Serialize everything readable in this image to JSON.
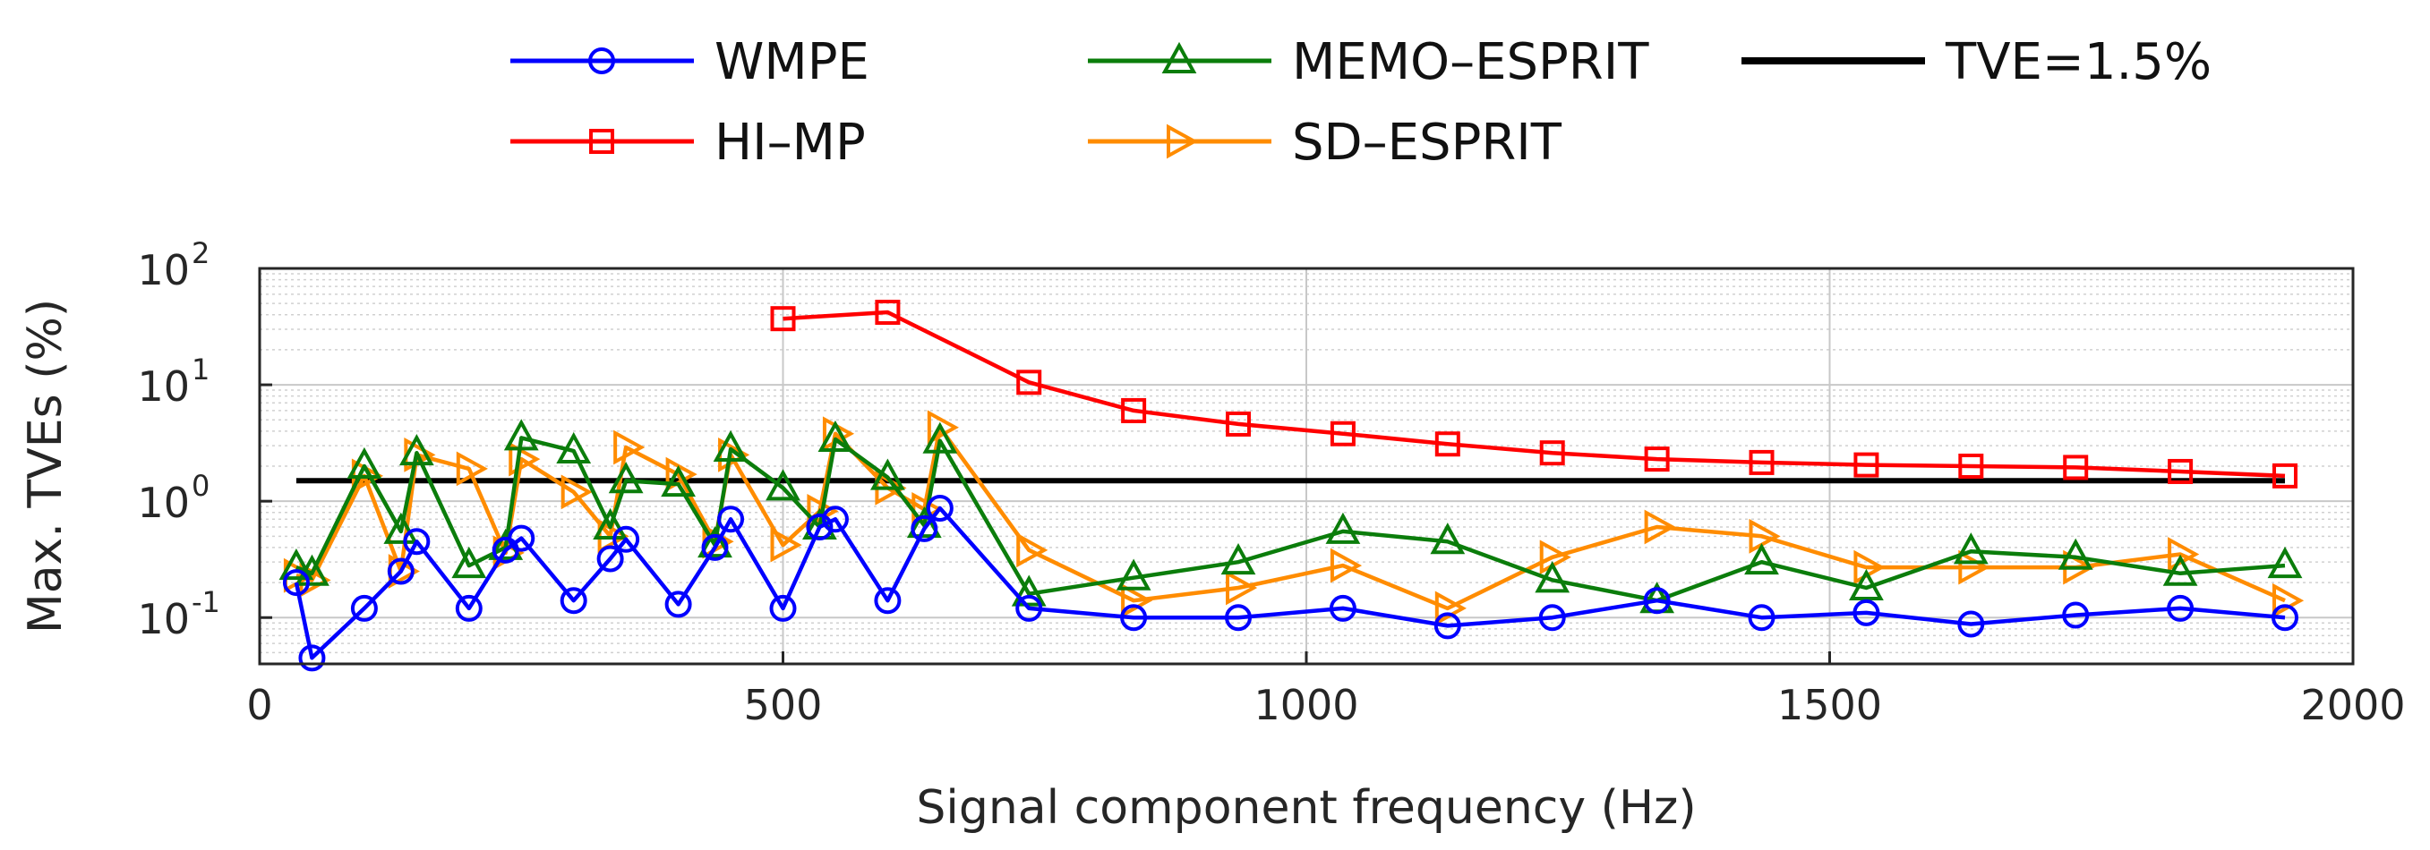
{
  "chart_data": {
    "type": "line",
    "title": "",
    "xlabel": "Signal component frequency (Hz)",
    "ylabel": "Max. TVEs (%)",
    "xlim": [
      0,
      2000
    ],
    "ylim": [
      0.04,
      100
    ],
    "yscale": "log",
    "grid": true,
    "legend_position": "top",
    "x_ticks": [
      {
        "value": 0,
        "label": "0"
      },
      {
        "value": 500,
        "label": "500"
      },
      {
        "value": 1000,
        "label": "1000"
      },
      {
        "value": 1500,
        "label": "1500"
      },
      {
        "value": 2000,
        "label": "2000"
      }
    ],
    "y_ticks": [
      {
        "value": 0.1,
        "base": "10",
        "exp": "-1"
      },
      {
        "value": 1,
        "base": "10",
        "exp": "0"
      },
      {
        "value": 10,
        "base": "10",
        "exp": "1"
      },
      {
        "value": 100,
        "base": "10",
        "exp": "2"
      }
    ],
    "threshold": {
      "name": "TVE=1.5%",
      "value": 1.5,
      "x_range": [
        35,
        1935
      ],
      "color": "#000000"
    },
    "series": [
      {
        "name": "WMPE",
        "color": "#0000ff",
        "marker": "circle",
        "x": [
          35,
          50,
          100,
          135,
          150,
          200,
          235,
          250,
          300,
          335,
          350,
          400,
          435,
          450,
          500,
          535,
          550,
          600,
          635,
          650,
          735,
          835,
          935,
          1035,
          1135,
          1235,
          1335,
          1435,
          1535,
          1635,
          1735,
          1835,
          1935
        ],
        "y": [
          0.2,
          0.045,
          0.12,
          0.25,
          0.45,
          0.12,
          0.38,
          0.48,
          0.14,
          0.32,
          0.47,
          0.13,
          0.4,
          0.7,
          0.12,
          0.6,
          0.7,
          0.14,
          0.58,
          0.87,
          0.12,
          0.1,
          0.1,
          0.12,
          0.085,
          0.1,
          0.14,
          0.1,
          0.11,
          0.088,
          0.105,
          0.12,
          0.1
        ]
      },
      {
        "name": "MEMO–ESPRIT",
        "color": "#0b7d0b",
        "marker": "triangle",
        "x": [
          35,
          50,
          100,
          135,
          150,
          200,
          235,
          250,
          300,
          335,
          350,
          400,
          435,
          450,
          500,
          535,
          550,
          600,
          635,
          650,
          735,
          835,
          935,
          1035,
          1135,
          1235,
          1335,
          1435,
          1535,
          1635,
          1735,
          1835,
          1935
        ],
        "y": [
          0.27,
          0.24,
          2.0,
          0.55,
          2.6,
          0.28,
          0.4,
          3.5,
          2.7,
          0.6,
          1.5,
          1.4,
          0.42,
          2.8,
          1.3,
          0.6,
          3.4,
          1.6,
          0.62,
          3.3,
          0.16,
          0.22,
          0.3,
          0.55,
          0.45,
          0.21,
          0.14,
          0.3,
          0.18,
          0.37,
          0.33,
          0.24,
          0.28
        ]
      },
      {
        "name": "TVE=1.5%",
        "color": "#000000",
        "marker": "none",
        "legend_only": true,
        "x": [],
        "y": []
      },
      {
        "name": "HI–MP",
        "color": "#ff0000",
        "marker": "square",
        "x": [
          500,
          600,
          735,
          835,
          935,
          1035,
          1135,
          1235,
          1335,
          1435,
          1535,
          1635,
          1735,
          1835,
          1935
        ],
        "y": [
          37,
          42,
          10.5,
          6.0,
          4.6,
          3.8,
          3.1,
          2.6,
          2.3,
          2.15,
          2.05,
          2.0,
          1.95,
          1.8,
          1.65
        ]
      },
      {
        "name": "SD–ESPRIT",
        "color": "#ff8c00",
        "marker": "triangle-right",
        "x": [
          35,
          50,
          100,
          135,
          150,
          200,
          235,
          250,
          300,
          335,
          350,
          400,
          435,
          450,
          500,
          535,
          550,
          600,
          635,
          650,
          735,
          835,
          935,
          1035,
          1135,
          1235,
          1335,
          1435,
          1535,
          1635,
          1735,
          1835,
          1935
        ],
        "y": [
          0.23,
          0.21,
          1.65,
          0.25,
          2.5,
          1.9,
          0.36,
          2.3,
          1.2,
          0.5,
          2.9,
          1.7,
          0.45,
          2.5,
          0.42,
          0.82,
          3.8,
          1.3,
          0.85,
          4.3,
          0.38,
          0.14,
          0.18,
          0.28,
          0.12,
          0.33,
          0.6,
          0.5,
          0.27,
          0.27,
          0.27,
          0.35,
          0.14
        ]
      }
    ]
  }
}
